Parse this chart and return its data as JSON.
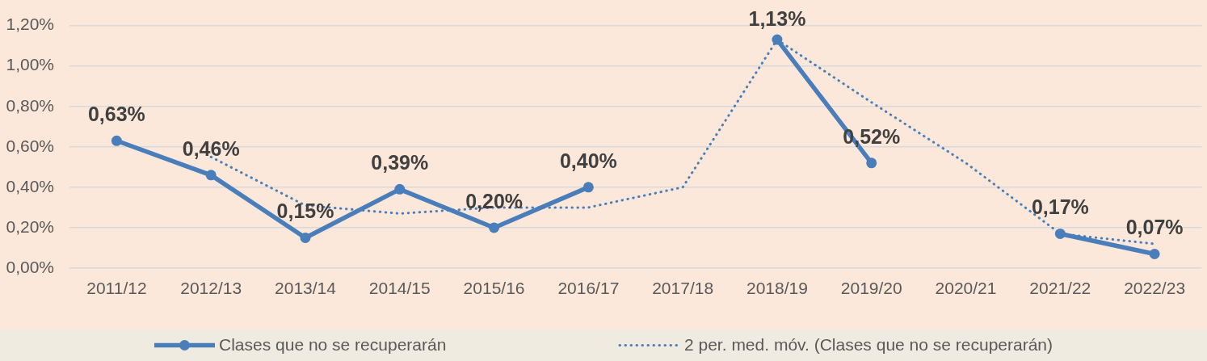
{
  "chart_data": {
    "type": "line",
    "categories": [
      "2011/12",
      "2012/13",
      "2013/14",
      "2014/15",
      "2015/16",
      "2016/17",
      "2017/18",
      "2018/19",
      "2019/20",
      "2020/21",
      "2021/22",
      "2022/23"
    ],
    "series": [
      {
        "name": "Clases que no se recuperarán",
        "color": "#4a7ebb",
        "values": [
          0.63,
          0.46,
          0.15,
          0.39,
          0.2,
          0.4,
          null,
          1.13,
          0.52,
          null,
          0.17,
          0.07
        ],
        "value_labels": [
          "0,63%",
          "0,46%",
          "0,15%",
          "0,39%",
          "0,20%",
          "0,40%",
          null,
          "1,13%",
          "0,52%",
          null,
          "0,17%",
          "0,07%"
        ]
      },
      {
        "name": "2 per. med. móv. (Clases que no se recuperarán)",
        "color": "#4a7ebb",
        "values": [
          null,
          0.55,
          0.31,
          0.27,
          0.3,
          0.3,
          0.4,
          1.13,
          0.82,
          0.52,
          0.17,
          0.12
        ],
        "line_style": "dotted",
        "marker": "none"
      }
    ],
    "ylim": [
      0,
      1.2
    ],
    "yticks": [
      {
        "value": 0,
        "label": "0,00%"
      },
      {
        "value": 0.2,
        "label": "0,20%"
      },
      {
        "value": 0.4,
        "label": "0,40%"
      },
      {
        "value": 0.6,
        "label": "0,60%"
      },
      {
        "value": 0.8,
        "label": "0,80%"
      },
      {
        "value": 1,
        "label": "1,00%"
      },
      {
        "value": 1.2,
        "label": "1,20%"
      }
    ],
    "grid": "y",
    "legend": "bottom",
    "marker": "circle",
    "line_style": "solid"
  }
}
